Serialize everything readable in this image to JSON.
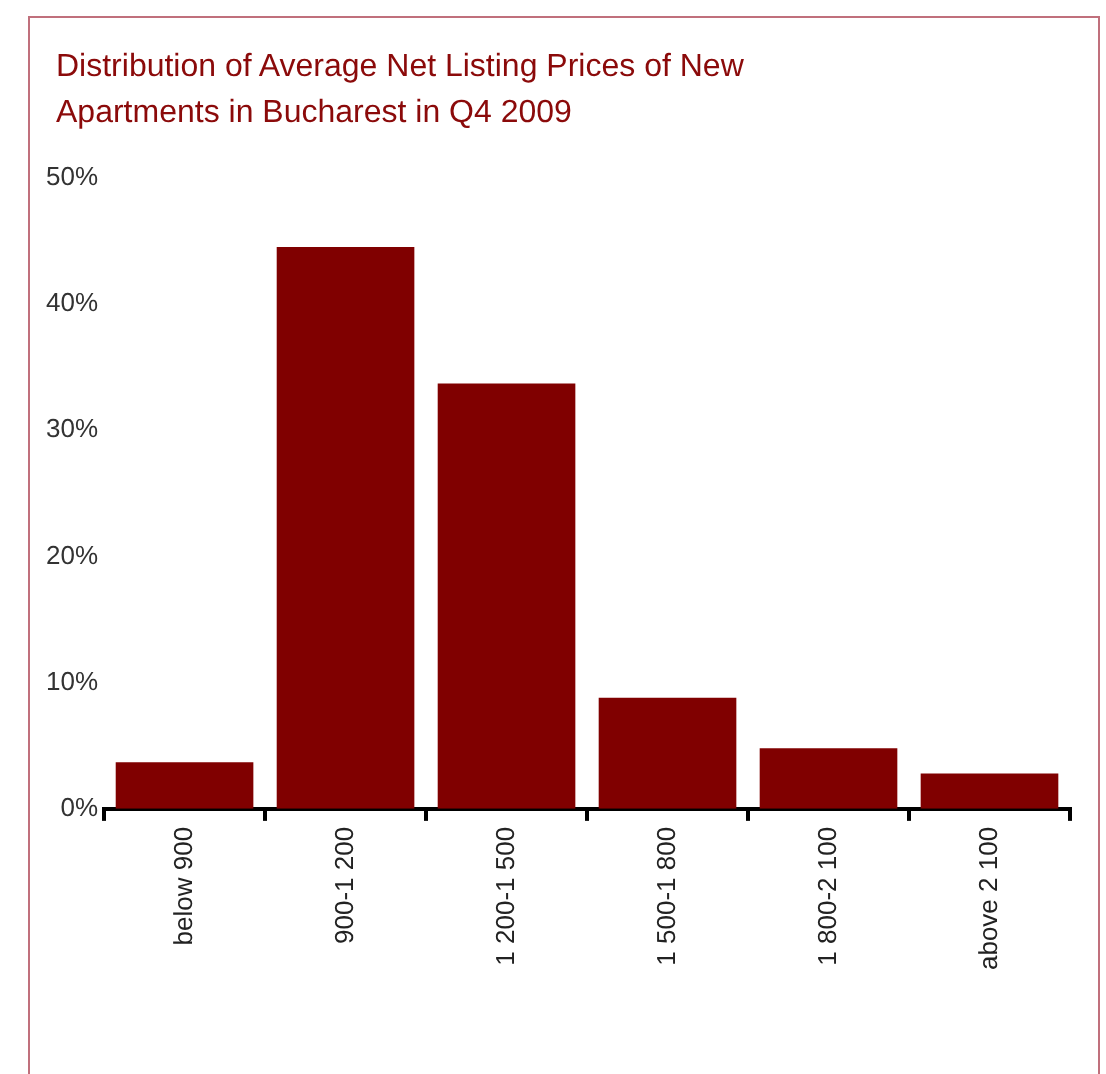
{
  "chart_data": {
    "type": "bar",
    "title": "Distribution of Average Net Listing Prices of New Apartments in Bucharest in Q4 2009",
    "categories": [
      "below 900",
      "900-1 200",
      "1 200-1 500",
      "1 500-1 800",
      "1 800-2 100",
      "above 2 100"
    ],
    "values": [
      3.7,
      44.5,
      33.7,
      8.8,
      4.8,
      2.8
    ],
    "color": "#800000",
    "ylim": [
      0,
      50
    ],
    "yticks": [
      {
        "value": 0,
        "label": "0%"
      },
      {
        "value": 10,
        "label": "10%"
      },
      {
        "value": 20,
        "label": "20%"
      },
      {
        "value": 30,
        "label": "30%"
      },
      {
        "value": 40,
        "label": "40%"
      },
      {
        "value": 50,
        "label": "50%"
      }
    ],
    "grid": false,
    "legend": false
  }
}
